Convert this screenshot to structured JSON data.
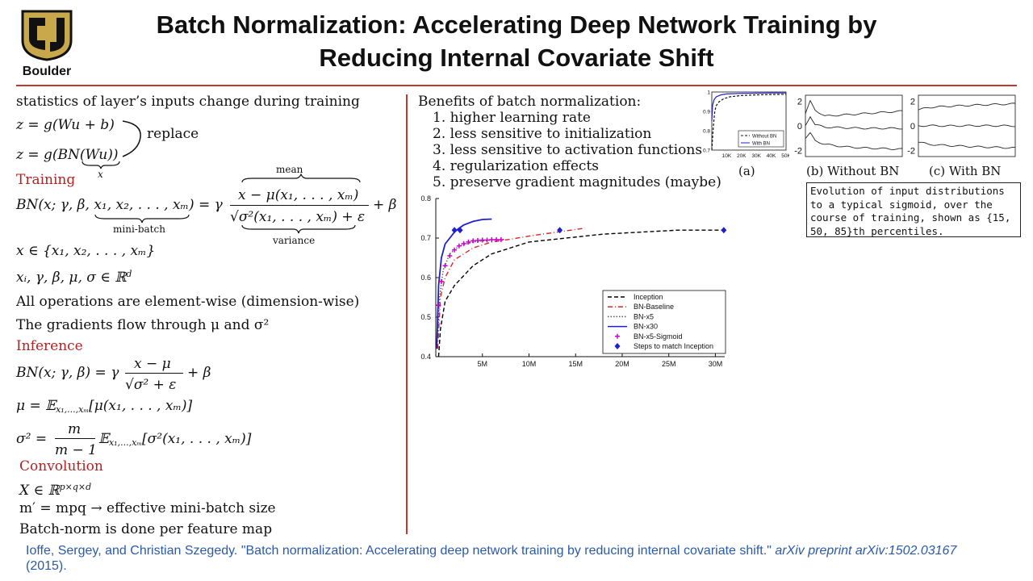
{
  "header": {
    "logo_text": "Boulder",
    "title_line1": "Batch Normalization: Accelerating Deep Network Training by",
    "title_line2": "Reducing Internal Covariate Shift"
  },
  "left": {
    "intro": "statistics of layer’s inputs change during training",
    "eq1": "z = g(Wu + b)",
    "eq2": "z = g(BN(Wu))",
    "eq2_under": "x",
    "replace": "replace",
    "training_heading": "Training",
    "bn_lhs": "BN(x; γ, β, x₁, x₂, . . . , xₘ) = γ",
    "bn_num": "x − μ(x₁, . . . , xₘ)",
    "bn_den": "√σ²(x₁, . . . , xₘ) + ε",
    "bn_rhs": "+ β",
    "mean_label": "mean",
    "minibatch_label": "mini-batch",
    "variance_label": "variance",
    "set_eq": "x ∈ {x₁, x₂, . . . , xₘ}",
    "real_eq": "xᵢ, γ, β, μ, σ ∈ ℝ",
    "real_sup": "d",
    "elementwise": "All operations are element-wise (dimension-wise)",
    "gradients": "The gradients flow through μ and σ²",
    "inference_heading": "Inference",
    "inf_lhs": "BN(x; γ, β) = γ",
    "inf_num": "x − μ",
    "inf_den": "√σ² + ε",
    "inf_rhs": "+ β",
    "mu_eq": "μ = 𝔼",
    "mu_sub": "x₁,...,xₘ",
    "mu_rest": "[μ(x₁, . . . , xₘ)]",
    "sigma_lhs": "σ² =",
    "sigma_num": "m",
    "sigma_den": "m − 1",
    "sigma_rest": "[σ²(x₁, . . . , xₘ)]",
    "conv_heading": "Convolution",
    "conv_eq": "X ∈ ℝ",
    "conv_sup": "p×q×d",
    "mprime": "m′ = mpq → effective mini-batch size",
    "per_feature": "Batch-norm is done per feature map"
  },
  "right": {
    "benefits_heading": "Benefits of batch normalization:",
    "benefits": [
      "1.  higher learning rate",
      "2.  less sensitive to initialization",
      "3.  less sensitive to activation functions",
      "4.  regularization effects",
      "5.  preserve gradient magnitudes (maybe)"
    ],
    "panel_a_label": "(a)",
    "panel_b_label": "(b) Without BN",
    "panel_c_label": "(c) With BN",
    "caption": "Evolution of input distributions to a typical sigmoid, over the course of training, shown as {15, 50, 85}th percentiles."
  },
  "citation": {
    "text": "Ioffe, Sergey, and Christian Szegedy. \"Batch normalization: Accelerating deep network training by reducing internal covariate shift.\" ",
    "italic": "arXiv preprint arXiv:1502.03167",
    "year": "(2015)."
  },
  "chart_data": [
    {
      "type": "line",
      "xlabel": "",
      "ylabel": "",
      "x_ticks": [
        "5M",
        "10M",
        "15M",
        "20M",
        "25M",
        "30M"
      ],
      "y_ticks": [
        "0.4",
        "0.5",
        "0.6",
        "0.7",
        "0.8"
      ],
      "xlim": [
        0,
        31000000
      ],
      "ylim": [
        0.4,
        0.8
      ],
      "legend_position": "lower-right",
      "colors": {
        "Inception": "#000000",
        "BN-Baseline": "#d62728",
        "BN-x5": "#555555",
        "BN-x30": "#1f1fcf",
        "BN-x5-Sigmoid": "#cc00cc",
        "Steps to match Inception": "#1f1fcf"
      },
      "series": [
        {
          "name": "Inception",
          "style": "dashed",
          "x": [
            300000,
            500000,
            1000000,
            2000000,
            4000000,
            6000000,
            8000000,
            10000000,
            14000000,
            18000000,
            22000000,
            26000000,
            31000000
          ],
          "y": [
            0.4,
            0.47,
            0.54,
            0.58,
            0.63,
            0.66,
            0.675,
            0.69,
            0.7,
            0.71,
            0.715,
            0.72,
            0.72
          ]
        },
        {
          "name": "BN-Baseline",
          "style": "dashdot",
          "x": [
            200000,
            500000,
            1000000,
            2000000,
            4000000,
            6000000,
            8000000,
            10000000,
            13000000,
            16000000
          ],
          "y": [
            0.42,
            0.55,
            0.6,
            0.645,
            0.675,
            0.69,
            0.697,
            0.705,
            0.715,
            0.725
          ]
        },
        {
          "name": "BN-x5",
          "style": "dotted",
          "x": [
            200000,
            400000,
            800000,
            1500000,
            2500000,
            4000000,
            6000000,
            7500000
          ],
          "y": [
            0.45,
            0.55,
            0.62,
            0.66,
            0.68,
            0.69,
            0.695,
            0.697
          ]
        },
        {
          "name": "BN-x30",
          "style": "solid",
          "x": [
            100000,
            300000,
            600000,
            1000000,
            1500000,
            2000000,
            2500000,
            3000000,
            4000000,
            5000000,
            6000000
          ],
          "y": [
            0.42,
            0.58,
            0.65,
            0.685,
            0.7,
            0.715,
            0.725,
            0.733,
            0.742,
            0.747,
            0.748
          ]
        },
        {
          "name": "BN-x5-Sigmoid",
          "style": "plus-markers",
          "x": [
            300000,
            600000,
            1000000,
            1500000,
            2000000,
            2500000,
            3000000,
            3500000,
            4000000,
            4500000,
            5000000,
            5500000,
            6000000,
            6500000,
            7000000
          ],
          "y": [
            0.53,
            0.59,
            0.63,
            0.655,
            0.67,
            0.68,
            0.686,
            0.69,
            0.693,
            0.694,
            0.695,
            0.695,
            0.696,
            0.696,
            0.696
          ]
        },
        {
          "name": "Steps to match Inception",
          "style": "diamond-markers",
          "x": [
            2000000,
            2600000,
            13300000,
            30900000
          ],
          "y": [
            0.72,
            0.72,
            0.72,
            0.72
          ]
        }
      ]
    },
    {
      "type": "line",
      "xlabel": "",
      "ylabel": "",
      "x_ticks": [
        "10K",
        "20K",
        "30K",
        "40K",
        "50K"
      ],
      "y_ticks": [
        "0.7",
        "0.8",
        "0.9",
        "1"
      ],
      "xlim": [
        0,
        50000
      ],
      "ylim": [
        0.7,
        1.0
      ],
      "legend_position": "lower-right",
      "series": [
        {
          "name": "Without BN",
          "style": "dashed",
          "x": [
            0,
            1000,
            2000,
            3000,
            5000,
            8000,
            12000,
            20000,
            30000,
            40000,
            50000
          ],
          "y": [
            0.7,
            0.82,
            0.9,
            0.93,
            0.95,
            0.965,
            0.975,
            0.982,
            0.985,
            0.987,
            0.988
          ]
        },
        {
          "name": "With BN",
          "style": "solid",
          "x": [
            0,
            500,
            1500,
            3000,
            6000,
            10000,
            20000,
            30000,
            40000,
            50000
          ],
          "y": [
            0.85,
            0.93,
            0.96,
            0.975,
            0.985,
            0.99,
            0.993,
            0.994,
            0.995,
            0.995
          ]
        }
      ]
    },
    {
      "type": "line",
      "title": "(b) Without BN",
      "y_ticks": [
        "2",
        "0",
        "-2"
      ],
      "ylim": [
        -2.5,
        2.5
      ],
      "series": [
        {
          "name": "",
          "x": [
            0,
            0.05,
            0.1,
            0.2,
            0.4,
            0.6,
            0.8,
            1.0
          ],
          "y": [
            1.0,
            2.0,
            1.3,
            0.8,
            0.9,
            1.0,
            1.1,
            1.2
          ]
        },
        {
          "name": "",
          "x": [
            0,
            0.05,
            0.1,
            0.2,
            0.4,
            0.6,
            0.8,
            1.0
          ],
          "y": [
            0.0,
            0.8,
            0.1,
            -0.1,
            -0.15,
            -0.2,
            -0.2,
            -0.2
          ]
        },
        {
          "name": "",
          "x": [
            0,
            0.05,
            0.1,
            0.2,
            0.4,
            0.6,
            0.8,
            1.0
          ],
          "y": [
            -1.0,
            -0.6,
            -1.2,
            -1.5,
            -1.7,
            -1.8,
            -1.85,
            -1.9
          ]
        }
      ]
    },
    {
      "type": "line",
      "title": "(c) With BN",
      "y_ticks": [
        "2",
        "0",
        "-2"
      ],
      "ylim": [
        -2.5,
        2.5
      ],
      "series": [
        {
          "name": "",
          "x": [
            0,
            0.1,
            0.3,
            0.6,
            1.0
          ],
          "y": [
            1.3,
            1.5,
            1.6,
            1.7,
            1.8
          ]
        },
        {
          "name": "",
          "x": [
            0,
            0.1,
            0.3,
            0.6,
            1.0
          ],
          "y": [
            0.0,
            0.02,
            0.0,
            0.02,
            0.0
          ]
        },
        {
          "name": "",
          "x": [
            0,
            0.1,
            0.3,
            0.6,
            1.0
          ],
          "y": [
            -1.3,
            -1.5,
            -1.6,
            -1.7,
            -1.8
          ]
        }
      ]
    }
  ]
}
